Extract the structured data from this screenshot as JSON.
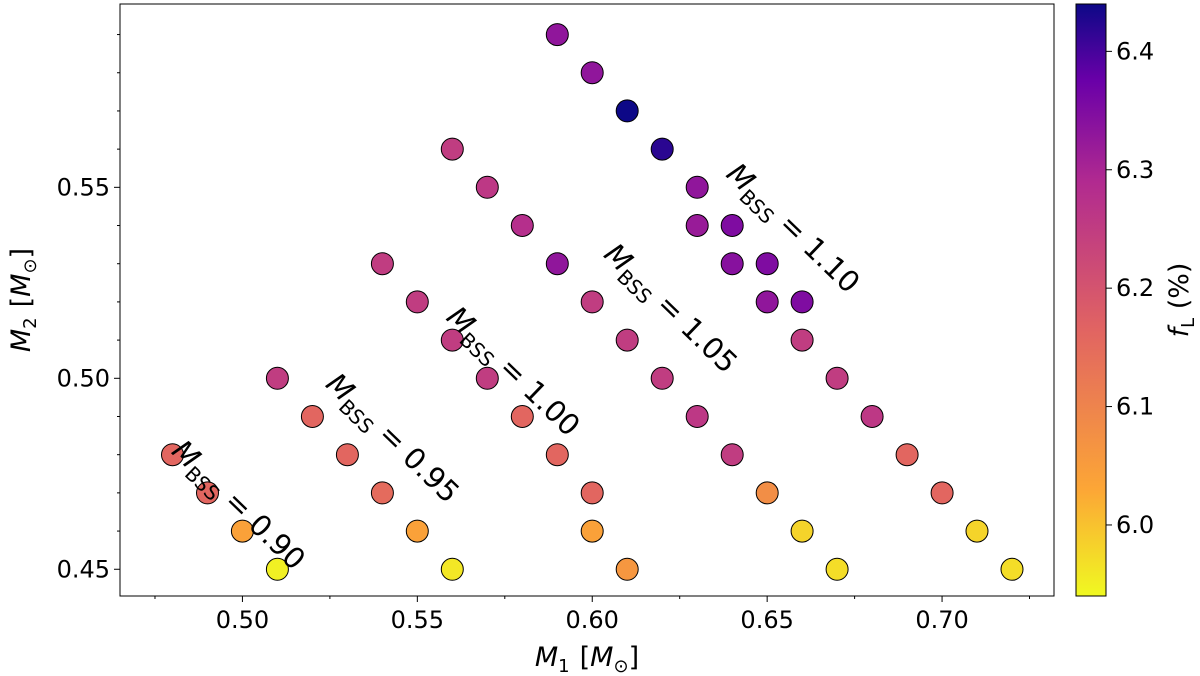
{
  "chart_data": {
    "type": "scatter",
    "xlabel": {
      "symbol": "M",
      "sub": "1",
      "unit_open": "[",
      "unit": "M",
      "unit_sub": "⊙",
      "unit_close": "]"
    },
    "ylabel": {
      "symbol": "M",
      "sub": "2",
      "unit_open": "[",
      "unit": "M",
      "unit_sub": "⊙",
      "unit_close": "]"
    },
    "xlim": [
      0.465,
      0.732
    ],
    "ylim": [
      0.443,
      0.598
    ],
    "x_ticks": [
      {
        "value": 0.5,
        "label": "0.50"
      },
      {
        "value": 0.55,
        "label": "0.55"
      },
      {
        "value": 0.6,
        "label": "0.60"
      },
      {
        "value": 0.65,
        "label": "0.65"
      },
      {
        "value": 0.7,
        "label": "0.70"
      }
    ],
    "y_ticks": [
      {
        "value": 0.45,
        "label": "0.45"
      },
      {
        "value": 0.5,
        "label": "0.50"
      },
      {
        "value": 0.55,
        "label": "0.55"
      }
    ],
    "colorbar": {
      "label": {
        "symbol": "f",
        "sub": "L",
        "suffix": " (%)"
      },
      "colormap": "plasma_r",
      "vmin": 5.94,
      "vmax": 6.44,
      "ticks": [
        {
          "value": 6.0,
          "label": "6.0"
        },
        {
          "value": 6.1,
          "label": "6.1"
        },
        {
          "value": 6.2,
          "label": "6.2"
        },
        {
          "value": 6.3,
          "label": "6.3"
        },
        {
          "value": 6.4,
          "label": "6.4"
        }
      ]
    },
    "series": [
      {
        "name": "M_BSS = 0.90",
        "points": [
          {
            "x": 0.48,
            "y": 0.48,
            "c": 6.16
          },
          {
            "x": 0.49,
            "y": 0.47,
            "c": 6.16
          },
          {
            "x": 0.5,
            "y": 0.46,
            "c": 6.04
          },
          {
            "x": 0.51,
            "y": 0.45,
            "c": 5.95
          }
        ]
      },
      {
        "name": "M_BSS = 0.95",
        "points": [
          {
            "x": 0.51,
            "y": 0.5,
            "c": 6.25
          },
          {
            "x": 0.52,
            "y": 0.49,
            "c": 6.16
          },
          {
            "x": 0.53,
            "y": 0.48,
            "c": 6.16
          },
          {
            "x": 0.54,
            "y": 0.47,
            "c": 6.15
          },
          {
            "x": 0.55,
            "y": 0.46,
            "c": 6.04
          },
          {
            "x": 0.56,
            "y": 0.45,
            "c": 5.96
          }
        ]
      },
      {
        "name": "M_BSS = 1.00",
        "points": [
          {
            "x": 0.54,
            "y": 0.53,
            "c": 6.25
          },
          {
            "x": 0.55,
            "y": 0.52,
            "c": 6.25
          },
          {
            "x": 0.56,
            "y": 0.51,
            "c": 6.25
          },
          {
            "x": 0.57,
            "y": 0.5,
            "c": 6.25
          },
          {
            "x": 0.58,
            "y": 0.49,
            "c": 6.16
          },
          {
            "x": 0.59,
            "y": 0.48,
            "c": 6.16
          },
          {
            "x": 0.6,
            "y": 0.47,
            "c": 6.16
          },
          {
            "x": 0.6,
            "y": 0.46,
            "c": 6.04
          },
          {
            "x": 0.61,
            "y": 0.45,
            "c": 6.06
          }
        ]
      },
      {
        "name": "M_BSS = 1.05",
        "points": [
          {
            "x": 0.56,
            "y": 0.56,
            "c": 6.25
          },
          {
            "x": 0.57,
            "y": 0.55,
            "c": 6.26
          },
          {
            "x": 0.58,
            "y": 0.54,
            "c": 6.28
          },
          {
            "x": 0.59,
            "y": 0.53,
            "c": 6.33
          },
          {
            "x": 0.6,
            "y": 0.52,
            "c": 6.25
          },
          {
            "x": 0.61,
            "y": 0.51,
            "c": 6.25
          },
          {
            "x": 0.62,
            "y": 0.5,
            "c": 6.25
          },
          {
            "x": 0.63,
            "y": 0.49,
            "c": 6.26
          },
          {
            "x": 0.64,
            "y": 0.48,
            "c": 6.25
          },
          {
            "x": 0.65,
            "y": 0.47,
            "c": 6.08
          },
          {
            "x": 0.66,
            "y": 0.46,
            "c": 5.98
          },
          {
            "x": 0.67,
            "y": 0.45,
            "c": 5.97
          }
        ]
      },
      {
        "name": "M_BSS = 1.10",
        "points": [
          {
            "x": 0.59,
            "y": 0.59,
            "c": 6.33
          },
          {
            "x": 0.6,
            "y": 0.58,
            "c": 6.33
          },
          {
            "x": 0.61,
            "y": 0.57,
            "c": 6.44
          },
          {
            "x": 0.62,
            "y": 0.56,
            "c": 6.42
          },
          {
            "x": 0.63,
            "y": 0.55,
            "c": 6.33
          },
          {
            "x": 0.63,
            "y": 0.54,
            "c": 6.32
          },
          {
            "x": 0.64,
            "y": 0.54,
            "c": 6.35
          },
          {
            "x": 0.64,
            "y": 0.53,
            "c": 6.34
          },
          {
            "x": 0.65,
            "y": 0.53,
            "c": 6.35
          },
          {
            "x": 0.65,
            "y": 0.52,
            "c": 6.33
          },
          {
            "x": 0.66,
            "y": 0.52,
            "c": 6.35
          },
          {
            "x": 0.66,
            "y": 0.51,
            "c": 6.25
          },
          {
            "x": 0.67,
            "y": 0.5,
            "c": 6.25
          },
          {
            "x": 0.68,
            "y": 0.49,
            "c": 6.26
          },
          {
            "x": 0.69,
            "y": 0.48,
            "c": 6.16
          },
          {
            "x": 0.7,
            "y": 0.47,
            "c": 6.16
          },
          {
            "x": 0.71,
            "y": 0.46,
            "c": 5.98
          },
          {
            "x": 0.72,
            "y": 0.45,
            "c": 5.97
          }
        ]
      }
    ],
    "annotations": [
      {
        "prefix": "M",
        "sub": "BSS",
        "text": " = 0.90",
        "x": 0.497,
        "y": 0.465
      },
      {
        "prefix": "M",
        "sub": "BSS",
        "text": " = 0.95",
        "x": 0.541,
        "y": 0.4825
      },
      {
        "prefix": "M",
        "sub": "BSS",
        "text": " = 1.00",
        "x": 0.5755,
        "y": 0.5
      },
      {
        "prefix": "M",
        "sub": "BSS",
        "text": " = 1.05",
        "x": 0.6205,
        "y": 0.5165
      },
      {
        "prefix": "M",
        "sub": "BSS",
        "text": " = 1.10",
        "x": 0.6555,
        "y": 0.5375
      }
    ]
  }
}
